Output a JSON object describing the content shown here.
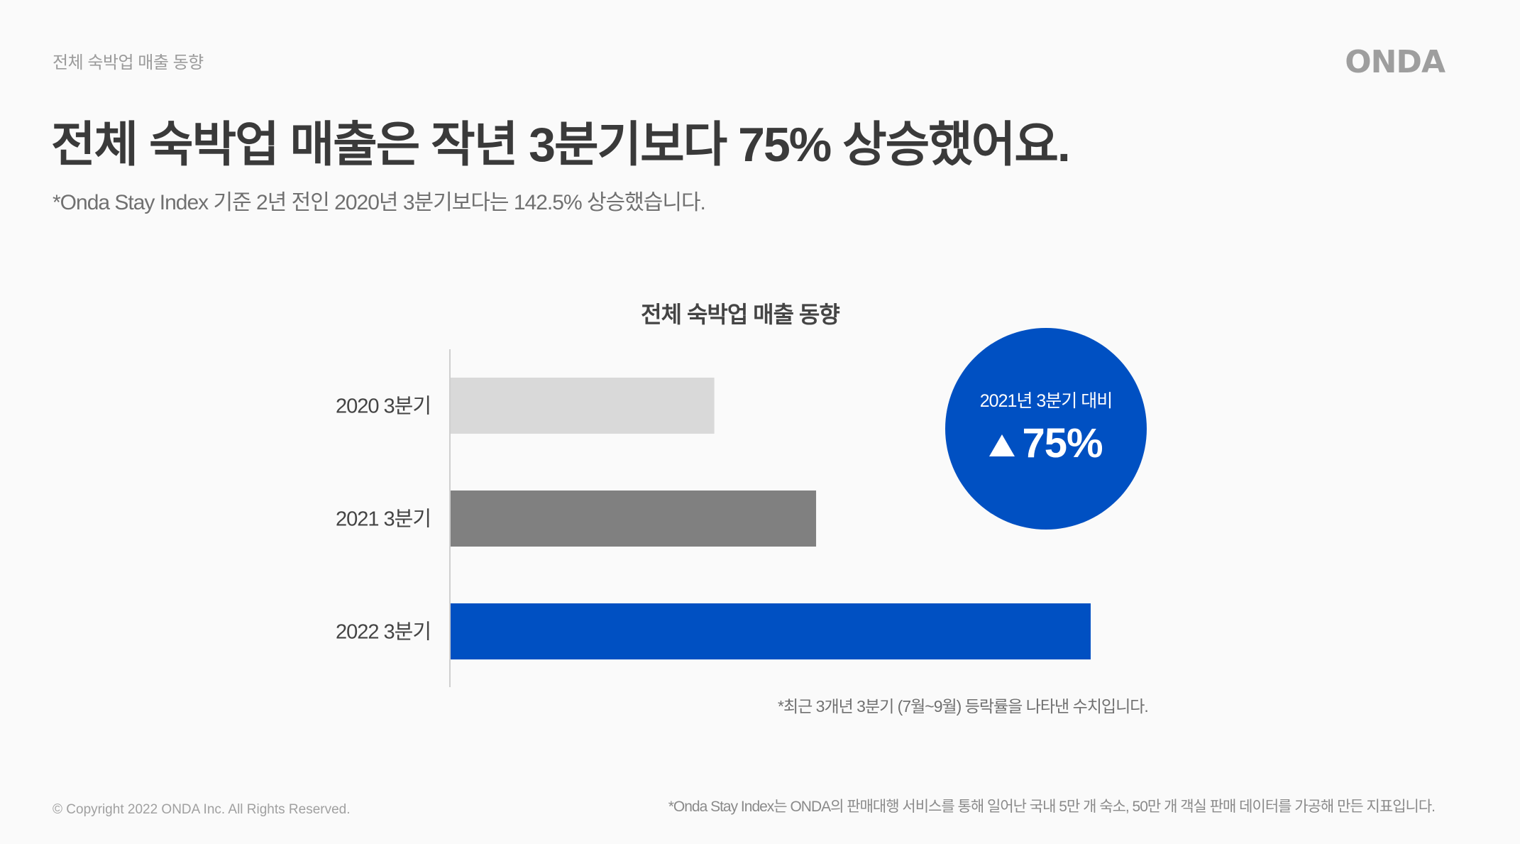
{
  "header": {
    "section_label": "전체 숙박업 매출 동향",
    "logo_text": "ONDA"
  },
  "headline": "전체 숙박업 매출은 작년 3분기보다 75% 상승했어요.",
  "subhead": "*Onda Stay Index 기준 2년 전인 2020년 3분기보다는 142.5% 상승했습니다.",
  "chart_data": {
    "type": "bar",
    "orientation": "horizontal",
    "title": "전체 숙박업 매출 동향",
    "categories": [
      "2020 3분기",
      "2021 3분기",
      "2022 3분기"
    ],
    "values": [
      41.2,
      57.1,
      100
    ],
    "colors": [
      "#d9d9d9",
      "#808080",
      "#0050c2"
    ],
    "xlim": [
      0,
      100
    ],
    "grid": false,
    "legend": "none"
  },
  "badge": {
    "label": "2021년 3분기 대비",
    "value": "75%",
    "icon": "up-triangle-icon",
    "color": "#0050c2"
  },
  "chart_note": "*최근 3개년 3분기 (7월~9월) 등락률을 나타낸 수치입니다.",
  "footer": {
    "copyright": "© Copyright 2022 ONDA Inc. All Rights Reserved.",
    "footnote": "*Onda Stay Index는 ONDA의 판매대행 서비스를 통해 일어난 국내 5만 개 숙소, 50만 개 객실 판매 데이터를 가공해 만든 지표입니다."
  }
}
